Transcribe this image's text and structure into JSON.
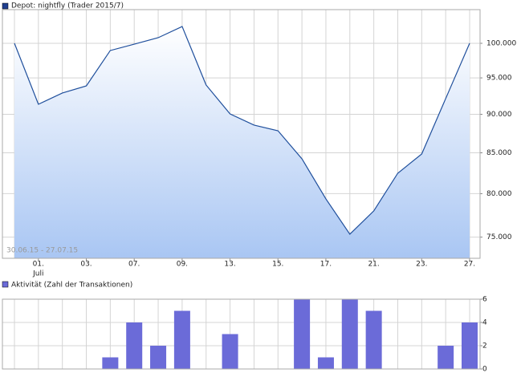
{
  "chart_data": [
    {
      "type": "area",
      "title": "Depot: nightfly (Trader 2015/7)",
      "annotation": "30.06.15 - 27.07.15",
      "categories": [
        null,
        "01.",
        null,
        "03.",
        null,
        "07.",
        null,
        "09.",
        null,
        "13.",
        null,
        "15.",
        null,
        "17.",
        null,
        "21.",
        null,
        "23.",
        null,
        "27."
      ],
      "x_sublabel": "Juli",
      "values": [
        100000,
        91350,
        92890,
        93880,
        98940,
        99880,
        100840,
        102530,
        94000,
        90050,
        88570,
        87830,
        84250,
        79380,
        75330,
        77980,
        82460,
        84850,
        92120,
        100000
      ],
      "color": "#1f4f9c",
      "log": true,
      "grid": true,
      "ylim": [
        72680,
        105130
      ],
      "yticks": [
        {
          "value": 75000,
          "label": "75.000"
        },
        {
          "value": 80000,
          "label": "80.000"
        },
        {
          "value": 85000,
          "label": "85.000"
        },
        {
          "value": 90000,
          "label": "90.000"
        },
        {
          "value": 95000,
          "label": "95.000"
        },
        {
          "value": 100000,
          "label": "100.000"
        }
      ]
    },
    {
      "type": "bar",
      "title": "Aktivität (Zahl der Transaktionen)",
      "values": [
        0,
        0,
        0,
        0,
        1,
        4,
        2,
        5,
        0,
        3,
        0,
        0,
        6,
        1,
        6,
        5,
        0,
        0,
        2,
        4
      ],
      "color": "#6b6bd8",
      "grid": true,
      "ylim": [
        0,
        6
      ],
      "yticks": [
        0,
        2,
        4,
        6
      ]
    }
  ]
}
